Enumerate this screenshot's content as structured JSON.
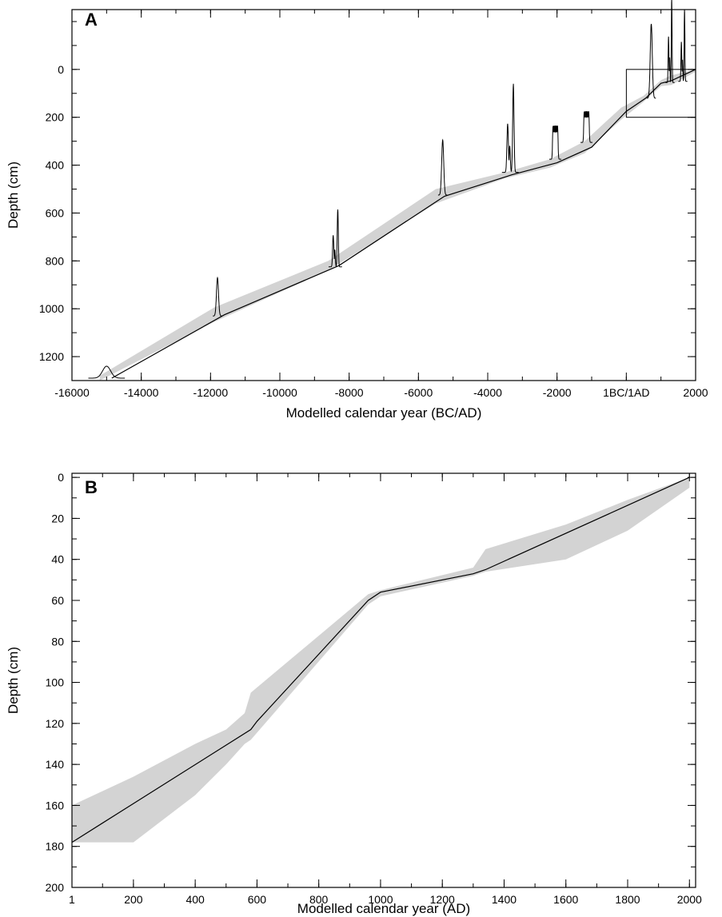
{
  "chart_data": [
    {
      "panel": "A",
      "type": "line",
      "xlabel": "Modelled calendar year (BC/AD)",
      "ylabel": "Depth (cm)",
      "xlim": [
        -16000,
        2000
      ],
      "ylim": [
        1300,
        -250
      ],
      "y_inverted": true,
      "x_ticks": [
        -16000,
        -14000,
        -12000,
        -10000,
        -8000,
        -6000,
        -4000,
        -2000,
        0,
        2000
      ],
      "x_tick_labels": [
        "-16000",
        "-14000",
        "-12000",
        "-10000",
        "-8000",
        "-6000",
        "-4000",
        "-2000",
        "1BC/1AD",
        "2000"
      ],
      "y_ticks": [
        0,
        200,
        400,
        600,
        800,
        1000,
        1200
      ],
      "y_tick_labels": [
        "0",
        "200",
        "400",
        "600",
        "800",
        "1000",
        "1200"
      ],
      "series": [
        {
          "role": "age-depth model (median)",
          "color": "#000000",
          "x": [
            -14850,
            -11600,
            -8300,
            -5250,
            -3300,
            -2000,
            -1000,
            0,
            560,
            1000,
            1300,
            2000
          ],
          "y": [
            1290,
            1025,
            820,
            530,
            440,
            390,
            325,
            175,
            120,
            58,
            47,
            0
          ]
        },
        {
          "role": "95% confidence envelope",
          "color": "#d3d3d3",
          "x": [
            -15200,
            -11900,
            -8600,
            -5500,
            -3500,
            -2200,
            -1200,
            -150,
            500,
            1000,
            1300,
            2000
          ],
          "y_upper": [
            1280,
            995,
            800,
            500,
            430,
            375,
            300,
            160,
            110,
            45,
            25,
            0
          ],
          "y_lower": [
            1300,
            1055,
            840,
            560,
            455,
            410,
            350,
            210,
            135,
            70,
            65,
            10
          ]
        }
      ],
      "dates": [
        {
          "center": -15000,
          "depth": 1290,
          "width": 550,
          "height": 50,
          "kind": "single"
        },
        {
          "center": -11800,
          "depth": 1030,
          "width": 80,
          "height": 160,
          "kind": "single"
        },
        {
          "center": -8400,
          "depth": 825,
          "width": 200,
          "height": 240,
          "kind": "multi"
        },
        {
          "center": -5300,
          "depth": 525,
          "width": 60,
          "height": 230,
          "kind": "single"
        },
        {
          "center": -3350,
          "depth": 430,
          "width": 250,
          "height": 370,
          "kind": "multi"
        },
        {
          "center": -2050,
          "depth": 375,
          "width": 180,
          "height": 140,
          "kind": "plateau"
        },
        {
          "center": -1150,
          "depth": 305,
          "width": 180,
          "height": 130,
          "kind": "plateau"
        },
        {
          "center": 720,
          "depth": 120,
          "width": 80,
          "height": 310,
          "kind": "single"
        },
        {
          "center": 1260,
          "depth": 55,
          "width": 80,
          "height": 350,
          "kind": "multi"
        },
        {
          "center": 1630,
          "depth": 50,
          "width": 80,
          "height": 300,
          "kind": "multi"
        }
      ],
      "inset_box": {
        "x": [
          1,
          2000
        ],
        "y": [
          0,
          200
        ]
      }
    },
    {
      "panel": "B",
      "type": "line",
      "xlabel": "Modelled calendar year (AD)",
      "ylabel": "Depth (cm)",
      "xlim": [
        1,
        2020
      ],
      "ylim": [
        200,
        -2
      ],
      "y_inverted": true,
      "x_ticks": [
        1,
        200,
        400,
        600,
        800,
        1000,
        1200,
        1400,
        1600,
        1800,
        2000
      ],
      "x_tick_labels": [
        "1",
        "200",
        "400",
        "600",
        "800",
        "1000",
        "1200",
        "1400",
        "1600",
        "1800",
        "2000"
      ],
      "y_ticks": [
        0,
        20,
        40,
        60,
        80,
        100,
        120,
        140,
        160,
        180,
        200
      ],
      "y_tick_labels": [
        "0",
        "20",
        "40",
        "60",
        "80",
        "100",
        "120",
        "140",
        "160",
        "180",
        "200"
      ],
      "series": [
        {
          "role": "age-depth model (median)",
          "color": "#000000",
          "x": [
            1,
            580,
            600,
            960,
            1000,
            1300,
            1340,
            2000
          ],
          "y": [
            178,
            123,
            119,
            60,
            56,
            47,
            45,
            0
          ]
        },
        {
          "role": "95% confidence envelope",
          "color": "#d3d3d3",
          "x": [
            1,
            200,
            400,
            500,
            560,
            580,
            960,
            1000,
            1300,
            1340,
            1600,
            1800,
            2000
          ],
          "y_upper": [
            160,
            146,
            130,
            123,
            115,
            105,
            57,
            55,
            44,
            35,
            23,
            11,
            0
          ],
          "y_lower": [
            178,
            178,
            155,
            140,
            130,
            128,
            62,
            58,
            48,
            46,
            40,
            26,
            5
          ]
        }
      ]
    }
  ]
}
